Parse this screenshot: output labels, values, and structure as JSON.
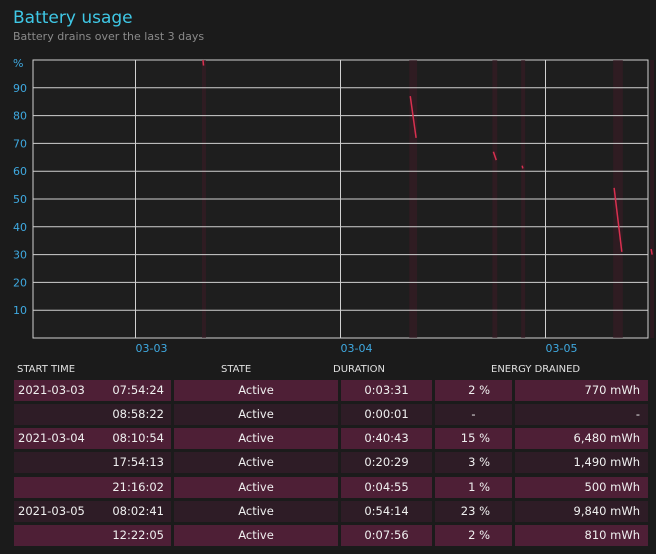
{
  "header": {
    "title": "Battery usage",
    "subtitle": "Battery drains over the last 3 days"
  },
  "colors": {
    "title": "#3fc8e6",
    "axis_label": "#3fa9e0",
    "drain_line": "#d8304f",
    "grid": "#d0d0d0",
    "row_a": "#4e1f36",
    "row_b": "#2e1c26"
  },
  "chart_data": {
    "type": "line",
    "title": "",
    "xlabel": "",
    "ylabel": "%",
    "ylim": [
      0,
      100
    ],
    "y_ticks": [
      10,
      20,
      30,
      40,
      50,
      60,
      70,
      80,
      90
    ],
    "x_ticks": [
      "03-03",
      "03-04",
      "03-05"
    ],
    "x_domain": [
      "2021-03-02 12:00",
      "2021-03-05 12:00"
    ],
    "grid": true,
    "segments": [
      {
        "start": "2021-03-03 07:54",
        "end": "2021-03-03 07:58",
        "from": 100,
        "to": 98
      },
      {
        "start": "2021-03-04 08:10",
        "end": "2021-03-04 08:51",
        "from": 87,
        "to": 72
      },
      {
        "start": "2021-03-04 17:54",
        "end": "2021-03-04 18:14",
        "from": 67,
        "to": 64
      },
      {
        "start": "2021-03-04 21:16",
        "end": "2021-03-04 21:21",
        "from": 62,
        "to": 61
      },
      {
        "start": "2021-03-05 08:02",
        "end": "2021-03-05 08:56",
        "from": 54,
        "to": 31
      },
      {
        "start": "2021-03-05 12:22",
        "end": "2021-03-05 12:29",
        "from": 32,
        "to": 30
      }
    ]
  },
  "table": {
    "columns": [
      "START TIME",
      "STATE",
      "DURATION",
      "ENERGY DRAINED"
    ],
    "rows": [
      {
        "date": "2021-03-03",
        "time": "07:54:24",
        "state": "Active",
        "duration": "0:03:31",
        "percent": "2 %",
        "energy": "770 mWh"
      },
      {
        "date": "",
        "time": "08:58:22",
        "state": "Active",
        "duration": "0:00:01",
        "percent": "-",
        "energy": "-"
      },
      {
        "date": "2021-03-04",
        "time": "08:10:54",
        "state": "Active",
        "duration": "0:40:43",
        "percent": "15 %",
        "energy": "6,480 mWh"
      },
      {
        "date": "",
        "time": "17:54:13",
        "state": "Active",
        "duration": "0:20:29",
        "percent": "3 %",
        "energy": "1,490 mWh"
      },
      {
        "date": "",
        "time": "21:16:02",
        "state": "Active",
        "duration": "0:04:55",
        "percent": "1 %",
        "energy": "500 mWh"
      },
      {
        "date": "2021-03-05",
        "time": "08:02:41",
        "state": "Active",
        "duration": "0:54:14",
        "percent": "23 %",
        "energy": "9,840 mWh"
      },
      {
        "date": "",
        "time": "12:22:05",
        "state": "Active",
        "duration": "0:07:56",
        "percent": "2 %",
        "energy": "810 mWh"
      }
    ]
  }
}
